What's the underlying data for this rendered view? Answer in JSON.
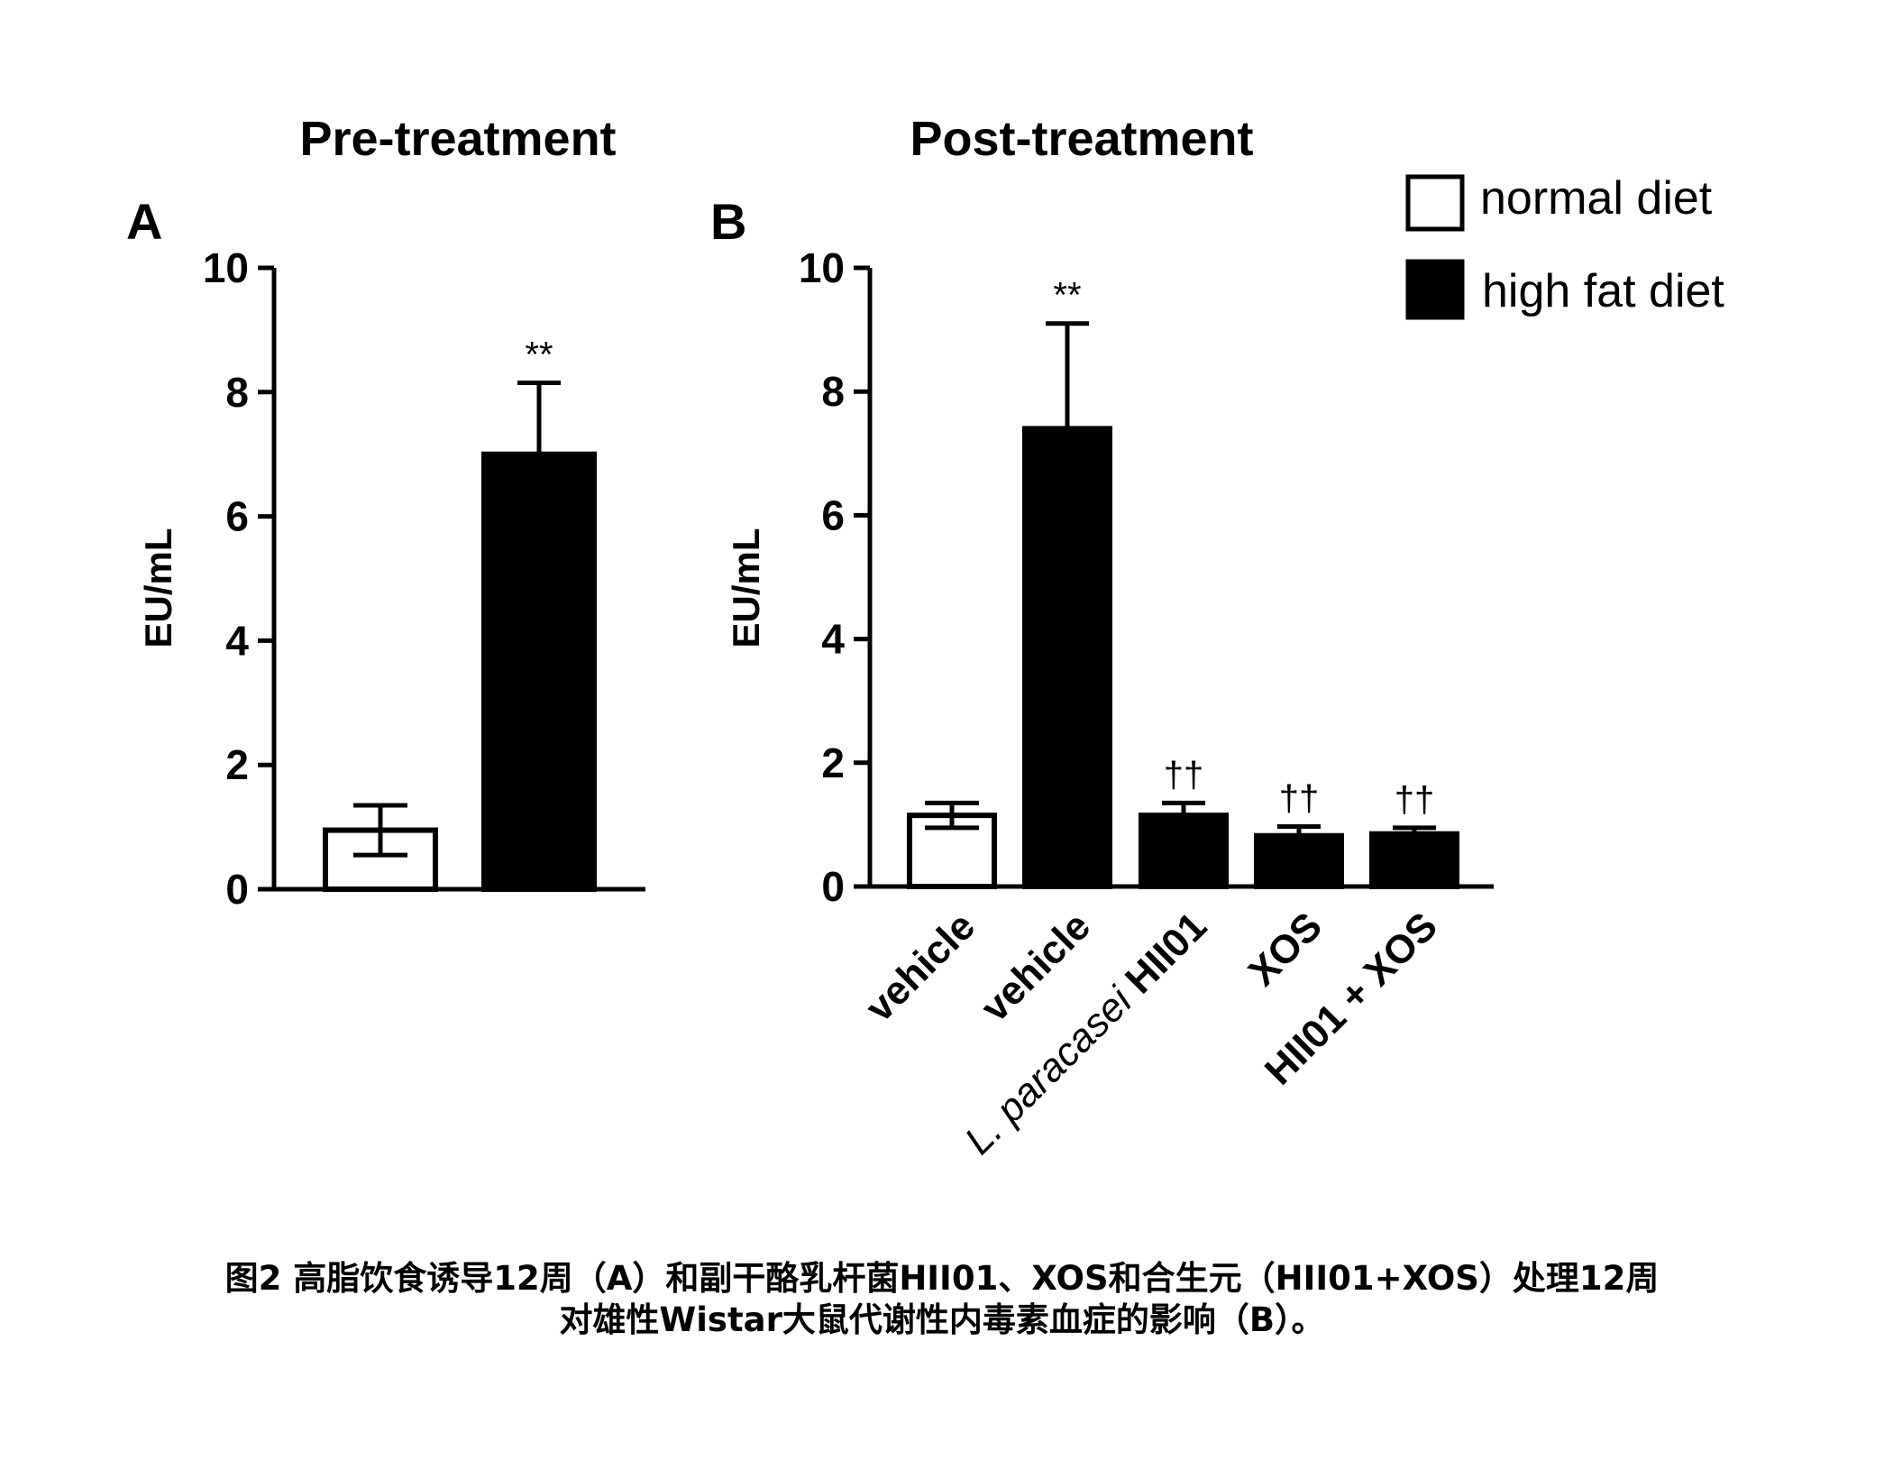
{
  "colors": {
    "normal_diet": "#ffffff",
    "high_fat_diet": "#000000",
    "stroke": "#000000"
  },
  "legend": {
    "placement": "top-right",
    "items": [
      {
        "label": "normal diet",
        "color": "#ffffff"
      },
      {
        "label": "high fat diet",
        "color": "#000000"
      }
    ]
  },
  "chart_data": [
    {
      "type": "bar",
      "panel": "A",
      "title": "Pre-treatment",
      "ylabel": "EU/mL",
      "xlabel": "",
      "ylim": [
        0,
        10
      ],
      "yticks": [
        "0",
        "2",
        "4",
        "6",
        "8",
        "10"
      ],
      "grid": false,
      "bars": [
        {
          "label": "",
          "group": "normal diet",
          "value": 0.95,
          "error": 0.4,
          "annotation": ""
        },
        {
          "label": "",
          "group": "high fat diet",
          "value": 7.0,
          "error": 1.15,
          "annotation": "**"
        }
      ]
    },
    {
      "type": "bar",
      "panel": "B",
      "title": "Post-treatment",
      "ylabel": "EU/mL",
      "xlabel": "",
      "ylim": [
        0,
        10
      ],
      "yticks": [
        "0",
        "2",
        "4",
        "6",
        "8",
        "10"
      ],
      "grid": false,
      "bars": [
        {
          "label": "vehicle",
          "group": "normal diet",
          "value": 1.15,
          "error": 0.2,
          "annotation": ""
        },
        {
          "label": "vehicle",
          "group": "high fat diet",
          "value": 7.4,
          "error": 1.7,
          "annotation": "**"
        },
        {
          "label_italic": "L. paracasei",
          "label": "HII01",
          "group": "high fat diet",
          "value": 1.15,
          "error": 0.2,
          "annotation": "††"
        },
        {
          "label": "XOS",
          "group": "high fat diet",
          "value": 0.82,
          "error": 0.15,
          "annotation": "††"
        },
        {
          "label": "HII01 + XOS",
          "group": "high fat diet",
          "value": 0.85,
          "error": 0.1,
          "annotation": "††"
        }
      ]
    }
  ],
  "caption": {
    "line1": "图2 高脂饮食诱导12周（A）和副干酪乳杆菌HII01、XOS和合生元（HII01+XOS）处理12周",
    "line2": "对雄性Wistar大鼠代谢性内毒素血症的影响（B）。"
  }
}
